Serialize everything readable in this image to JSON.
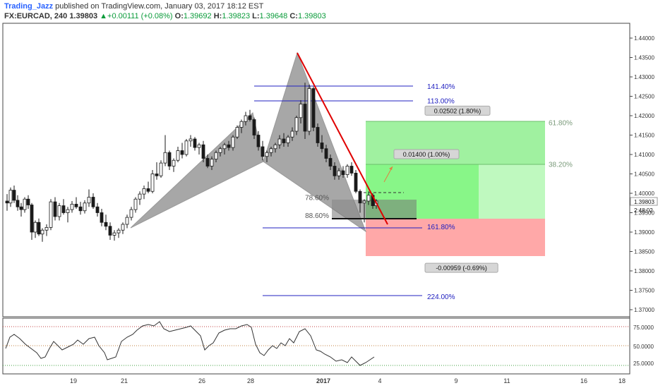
{
  "header": {
    "author": "Trading_Jazz",
    "published": " published on TradingView.com, January 03, 2017 18:12 EST",
    "symbol": "FX:EURCAD, 240",
    "last": "1.39803",
    "change": "▲+0.00111 (+0.08%)",
    "o_label": "O:",
    "o": "1.39692",
    "h_label": "H:",
    "h": "1.39823",
    "l_label": "L:",
    "l": "1.39648",
    "c_label": "C:",
    "c": "1.39803"
  },
  "colors": {
    "bull": "#1a1a1a",
    "bear": "#1a1a1a",
    "pattern": "#9e9e9e",
    "fib_line": "#2020c0",
    "trend": "#e00000",
    "profit": "#7bf57b",
    "loss": "#ff9e9e",
    "rsi": "#333333"
  },
  "chart_data": {
    "type": "candlestick",
    "y_ticks": [
      "1.44000",
      "1.43500",
      "1.43000",
      "1.42500",
      "1.42000",
      "1.41500",
      "1.41000",
      "1.40500",
      "1.40000",
      "1.39500",
      "1.39000",
      "1.38500",
      "1.38000",
      "1.37500",
      "1.37000"
    ],
    "x_ticks": [
      "19",
      "21",
      "26",
      "28",
      "2017",
      "4",
      "9",
      "11",
      "16",
      "18"
    ],
    "price_label": "1.39803",
    "timer_label": "2:48:02",
    "fib_labels": [
      {
        "text": "141.40%",
        "price": 1.4275
      },
      {
        "text": "113.00%",
        "price": 1.4237
      },
      {
        "text": "161.80%",
        "price": 1.3913
      },
      {
        "text": "224.00%",
        "price": 1.3733
      }
    ],
    "retrace_labels": [
      {
        "text": "78.60%",
        "price": 1.3988
      },
      {
        "text": "88.60%",
        "price": 1.3942
      }
    ],
    "zone_labels": [
      {
        "text": "61.80%",
        "price": 1.4181
      },
      {
        "text": "38.20%",
        "price": 1.4074
      }
    ],
    "measure_labels": [
      {
        "text": "0.02502 (1.80%)",
        "price": 1.4212
      },
      {
        "text": "0.01400 (1.00%)",
        "price": 1.41
      },
      {
        "text": "-0.00959 (-0.69%)",
        "price": 1.3807
      }
    ],
    "rsi_ticks": [
      "75.0000",
      "50.0000",
      "25.0000"
    ]
  }
}
